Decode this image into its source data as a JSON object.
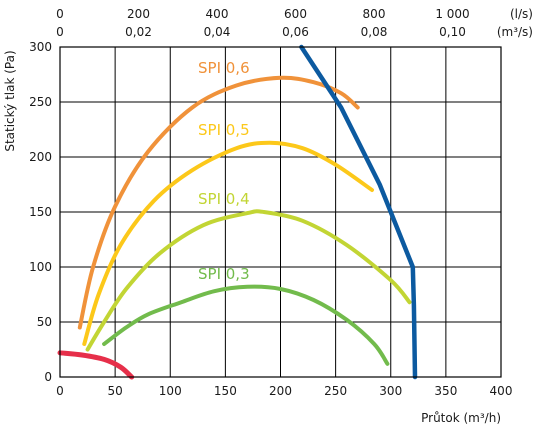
{
  "chart_data": {
    "type": "line",
    "xlabel": "Průtok (m³/h)",
    "ylabel": "Statický tlak (Pa)",
    "xlim": [
      0,
      400
    ],
    "ylim": [
      0,
      300
    ],
    "grid": true,
    "x_ticks": [
      "0",
      "50",
      "100",
      "150",
      "200",
      "250",
      "300",
      "350",
      "400"
    ],
    "y_ticks": [
      "0",
      "50",
      "100",
      "150",
      "200",
      "250",
      "300"
    ],
    "top_axis_ls": {
      "unit": "(l/s)",
      "ticks": [
        "0",
        "200",
        "400",
        "600",
        "800",
        "1 000"
      ]
    },
    "top_axis_m3s": {
      "unit": "(m³/s)",
      "ticks": [
        "0",
        "0,02",
        "0,04",
        "0,06",
        "0,08",
        "0,10"
      ]
    },
    "series": [
      {
        "name": "SPI 0,6",
        "color": "#f0923a",
        "points": [
          [
            18,
            45
          ],
          [
            30,
            100
          ],
          [
            50,
            155
          ],
          [
            80,
            205
          ],
          [
            120,
            245
          ],
          [
            160,
            265
          ],
          [
            200,
            272
          ],
          [
            230,
            268
          ],
          [
            255,
            258
          ],
          [
            270,
            245
          ]
        ]
      },
      {
        "name": "SPI 0,5",
        "color": "#fcc81a",
        "points": [
          [
            22,
            30
          ],
          [
            35,
            75
          ],
          [
            55,
            120
          ],
          [
            85,
            160
          ],
          [
            120,
            188
          ],
          [
            160,
            208
          ],
          [
            190,
            213
          ],
          [
            220,
            208
          ],
          [
            250,
            193
          ],
          [
            283,
            170
          ]
        ]
      },
      {
        "name": "SPI 0,4",
        "color": "#c2d534",
        "points": [
          [
            25,
            25
          ],
          [
            40,
            50
          ],
          [
            60,
            80
          ],
          [
            90,
            112
          ],
          [
            130,
            138
          ],
          [
            170,
            149
          ],
          [
            185,
            150
          ],
          [
            220,
            142
          ],
          [
            260,
            120
          ],
          [
            300,
            88
          ],
          [
            317,
            68
          ]
        ]
      },
      {
        "name": "SPI 0,3",
        "color": "#72bb4c",
        "points": [
          [
            40,
            30
          ],
          [
            60,
            45
          ],
          [
            80,
            57
          ],
          [
            110,
            68
          ],
          [
            140,
            78
          ],
          [
            170,
            82
          ],
          [
            200,
            80
          ],
          [
            230,
            70
          ],
          [
            260,
            52
          ],
          [
            285,
            30
          ],
          [
            297,
            12
          ]
        ]
      },
      {
        "name": "",
        "color": "#0c5aa0",
        "points": [
          [
            219,
            300
          ],
          [
            255,
            245
          ],
          [
            290,
            175
          ],
          [
            320,
            100
          ],
          [
            321,
            65
          ],
          [
            322,
            0
          ]
        ]
      },
      {
        "name": "",
        "color": "#e62f4a",
        "points": [
          [
            0,
            22
          ],
          [
            20,
            20
          ],
          [
            40,
            16
          ],
          [
            55,
            9
          ],
          [
            65,
            0
          ]
        ]
      }
    ]
  }
}
